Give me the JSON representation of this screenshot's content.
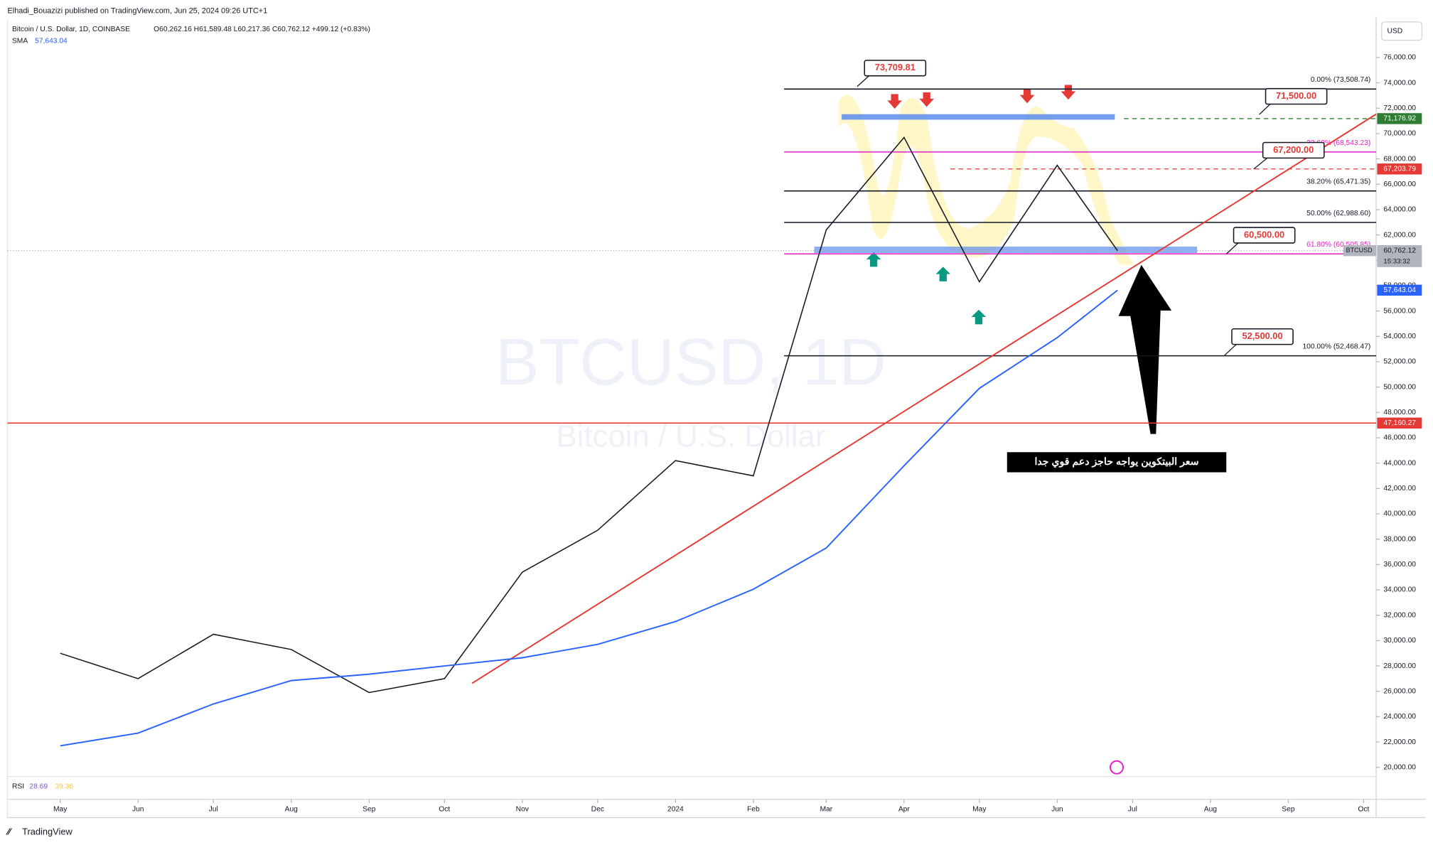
{
  "header": {
    "publisher": "Elhadi_Bouazizi published on TradingView.com, Jun 25, 2024 09:26 UTC+1",
    "symbol": "Bitcoin / U.S. Dollar, 1D, COINBASE",
    "ohlc": "O60,262.16 H61,589.48 L60,217.36 C60,762.12 +499.12 (+0.83%)",
    "sma_label": "SMA",
    "sma_value": "57,643.04",
    "currency": "USD",
    "watermark": "BTCUSD, 1D",
    "watermark_sub": "Bitcoin / U.S. Dollar",
    "rsi_label": "RSI",
    "rsi_value": "28.69",
    "rsi_ma": "39.36",
    "footer": "TradingView"
  },
  "chart_data": {
    "type": "line",
    "x": [
      "2023-05",
      "2023-06",
      "2023-07",
      "2023-08",
      "2023-09",
      "2023-10",
      "2023-11",
      "2023-12",
      "2024-01",
      "2024-02",
      "2024-03",
      "2024-04",
      "2024-05",
      "2024-06",
      "2024-06-25"
    ],
    "series": [
      {
        "name": "BTCUSD",
        "color": "#131722",
        "values": [
          29000,
          27000,
          30500,
          29300,
          25900,
          27000,
          35400,
          38700,
          44200,
          43000,
          62400,
          69700,
          58300,
          67500,
          60762.12
        ]
      },
      {
        "name": "SMA",
        "color": "#2962ff",
        "values": [
          21700,
          22700,
          25000,
          26850,
          27350,
          28000,
          28650,
          29700,
          31500,
          34050,
          37300,
          43800,
          49900,
          53900,
          57643.04
        ]
      }
    ],
    "xlim": [
      "2023-04-10",
      "2024-10-06"
    ],
    "xticks": [
      {
        "value": "2023-05",
        "label": "May"
      },
      {
        "value": "2023-06",
        "label": "Jun"
      },
      {
        "value": "2023-07",
        "label": "Jul"
      },
      {
        "value": "2023-08",
        "label": "Aug"
      },
      {
        "value": "2023-09",
        "label": "Sep"
      },
      {
        "value": "2023-10",
        "label": "Oct"
      },
      {
        "value": "2023-11",
        "label": "Nov"
      },
      {
        "value": "2023-12",
        "label": "Dec"
      },
      {
        "value": "2024-01",
        "label": "2024"
      },
      {
        "value": "2024-02",
        "label": "Feb"
      },
      {
        "value": "2024-03",
        "label": "Mar"
      },
      {
        "value": "2024-04",
        "label": "Apr"
      },
      {
        "value": "2024-05",
        "label": "May"
      },
      {
        "value": "2024-06",
        "label": "Jun"
      },
      {
        "value": "2024-07",
        "label": "Jul"
      },
      {
        "value": "2024-08",
        "label": "Aug"
      },
      {
        "value": "2024-09",
        "label": "Sep"
      },
      {
        "value": "2024-10",
        "label": "Oct"
      }
    ],
    "ylim": [
      19280,
      78950
    ],
    "yticks": [
      {
        "value": 20000,
        "label": "20,000.00"
      },
      {
        "value": 22000,
        "label": "22,000.00"
      },
      {
        "value": 24000,
        "label": "24,000.00"
      },
      {
        "value": 26000,
        "label": "26,000.00"
      },
      {
        "value": 28000,
        "label": "28,000.00"
      },
      {
        "value": 30000,
        "label": "30,000.00"
      },
      {
        "value": 32000,
        "label": "32,000.00"
      },
      {
        "value": 34000,
        "label": "34,000.00"
      },
      {
        "value": 36000,
        "label": "36,000.00"
      },
      {
        "value": 38000,
        "label": "38,000.00"
      },
      {
        "value": 40000,
        "label": "40,000.00"
      },
      {
        "value": 42000,
        "label": "42,000.00"
      },
      {
        "value": 44000,
        "label": "44,000.00"
      },
      {
        "value": 46000,
        "label": "46,000.00"
      },
      {
        "value": 48000,
        "label": "48,000.00"
      },
      {
        "value": 50000,
        "label": "50,000.00"
      },
      {
        "value": 52000,
        "label": "52,000.00"
      },
      {
        "value": 54000,
        "label": "54,000.00"
      },
      {
        "value": 56000,
        "label": "56,000.00"
      },
      {
        "value": 58000,
        "label": "58,000.00"
      },
      {
        "value": 60000,
        "label": "60,000.00"
      },
      {
        "value": 62000,
        "label": "62,000.00"
      },
      {
        "value": 64000,
        "label": "64,000.00"
      },
      {
        "value": 66000,
        "label": "66,000.00"
      },
      {
        "value": 68000,
        "label": "68,000.00"
      },
      {
        "value": 70000,
        "label": "70,000.00"
      },
      {
        "value": 72000,
        "label": "72,000.00"
      },
      {
        "value": 74000,
        "label": "74,000.00"
      },
      {
        "value": 76000,
        "label": "76,000.00"
      }
    ],
    "fib_levels": [
      {
        "value": 73508.74,
        "label": "0.00% (73,508.74)",
        "color": "#131722"
      },
      {
        "value": 68543.23,
        "label": "23.60% (68,543.23)",
        "color": "#e91ec7"
      },
      {
        "value": 65471.35,
        "label": "38.20% (65,471.35)",
        "color": "#131722"
      },
      {
        "value": 62988.6,
        "label": "50.00% (62,988.60)",
        "color": "#131722"
      },
      {
        "value": 60505.85,
        "label": "61.80% (60,505.85)",
        "color": "#e91ec7"
      },
      {
        "value": 52468.47,
        "label": "100.00% (52,468.47)",
        "color": "#131722"
      }
    ],
    "price_labels": [
      {
        "value": 71176.92,
        "label": "71,176.92",
        "color": "#2e7d32"
      },
      {
        "value": 67203.79,
        "label": "67,203.79",
        "color": "#e53935"
      },
      {
        "value": 60762.12,
        "label": "60,762.12",
        "color": "#b2b5be",
        "extra": [
          "BTCUSD",
          "15:33:32"
        ]
      },
      {
        "value": 57643.04,
        "label": "57,643.04",
        "color": "#2962ff"
      },
      {
        "value": 47160.27,
        "label": "47,160.27",
        "color": "#e53935"
      }
    ],
    "callouts": [
      {
        "value": 73709.81,
        "label": "73,709.81"
      },
      {
        "value": 71500.0,
        "label": "71,500.00"
      },
      {
        "value": 67200.0,
        "label": "67,200.00"
      },
      {
        "value": 60500.0,
        "label": "60,500.00"
      },
      {
        "value": 52500.0,
        "label": "52,500.00"
      }
    ],
    "trendline": {
      "x": [
        "2023-10-12",
        "2024-10-06"
      ],
      "values": [
        26630,
        71530
      ],
      "color": "#e53935"
    },
    "annotation": "سعر البيتكوين يواجه حاجز دعم قوي جدا"
  }
}
